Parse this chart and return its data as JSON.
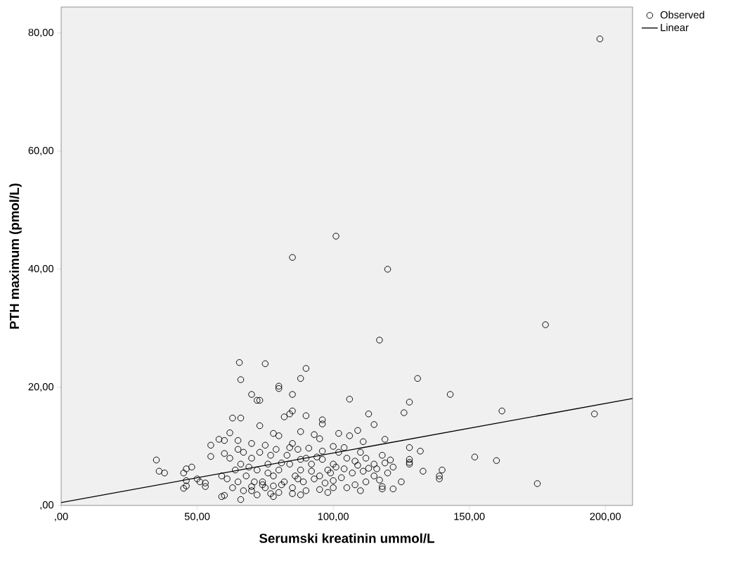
{
  "chart_data": {
    "type": "scatter",
    "xlabel": "Serumski kreatinin ummol/L",
    "ylabel": "PTH maximum (pmol/L)",
    "xlim": [
      0,
      210
    ],
    "ylim": [
      0,
      84.4
    ],
    "xticks": [
      {
        "value": 0,
        "label": ",00"
      },
      {
        "value": 50,
        "label": "50,00"
      },
      {
        "value": 100,
        "label": "100,00"
      },
      {
        "value": 150,
        "label": "150,00"
      },
      {
        "value": 200,
        "label": "200,00"
      }
    ],
    "yticks": [
      {
        "value": 0,
        "label": ",00"
      },
      {
        "value": 20,
        "label": "20,00"
      },
      {
        "value": 40,
        "label": "40,00"
      },
      {
        "value": 60,
        "label": "60,00"
      },
      {
        "value": 80,
        "label": "80,00"
      }
    ],
    "legend": "top right",
    "grid": false,
    "series": [
      {
        "name": "Observed",
        "color": "#000000",
        "marker": "circle",
        "x": [
          198,
          101,
          85,
          120,
          178,
          117,
          65.5,
          75,
          90,
          88,
          66,
          131,
          80,
          80,
          85,
          70,
          106,
          72,
          73,
          143,
          128,
          162,
          196,
          126,
          113,
          84,
          82,
          85,
          90,
          96,
          96,
          115,
          73,
          62,
          78,
          88,
          93,
          102,
          106,
          109,
          119,
          111,
          66,
          63,
          55,
          58,
          60,
          65,
          70,
          75,
          80,
          85,
          95,
          100,
          104,
          118,
          128,
          132,
          128,
          128,
          128,
          140,
          139,
          139,
          152,
          160,
          175,
          133,
          122,
          122,
          118,
          118,
          110,
          35,
          36,
          38,
          45,
          46,
          48,
          46,
          46,
          45,
          50,
          51,
          53,
          53,
          55,
          60,
          59,
          60,
          59,
          65,
          66,
          67,
          70,
          72,
          75,
          77,
          78,
          80,
          85,
          88,
          90,
          95,
          98,
          100,
          105,
          108,
          112,
          115,
          120,
          125,
          115,
          112,
          110,
          108,
          105,
          102,
          100,
          98,
          95,
          92,
          90,
          88,
          86,
          84,
          82,
          80,
          78,
          76,
          74,
          72,
          70,
          68,
          66,
          64,
          62,
          61,
          63,
          67,
          71,
          73,
          77,
          79,
          81,
          83,
          87,
          89,
          91,
          93,
          94,
          96,
          97,
          99,
          101,
          103,
          104,
          107,
          109,
          111,
          113,
          116,
          119,
          121,
          117,
          85,
          87,
          76,
          74,
          69,
          65,
          92,
          96,
          81,
          84,
          78,
          88,
          70,
          100
        ],
        "values": [
          79,
          45.6,
          42,
          40,
          30.6,
          28,
          24.2,
          24,
          23.2,
          21.5,
          21.3,
          21.5,
          20.2,
          19.8,
          18.8,
          18.8,
          18,
          17.8,
          17.8,
          18.8,
          17.5,
          16,
          15.5,
          15.7,
          15.5,
          15.5,
          15,
          16,
          15.2,
          14.5,
          13.8,
          13.7,
          13.5,
          12.3,
          12.2,
          12.5,
          12,
          12.2,
          11.8,
          12.7,
          11.2,
          10.8,
          14.8,
          14.8,
          10.2,
          11.2,
          11,
          11,
          10.5,
          10.2,
          11.8,
          10.5,
          11.3,
          10,
          9.8,
          8.5,
          9.8,
          9.2,
          7.8,
          7.3,
          7,
          6,
          5,
          4.5,
          8.2,
          7.6,
          3.7,
          5.8,
          6.5,
          2.8,
          3.2,
          2.8,
          2.5,
          7.7,
          5.8,
          5.5,
          5.5,
          6.2,
          6.5,
          4.2,
          3.3,
          2.9,
          4.5,
          4,
          3.8,
          3.2,
          8.3,
          8.8,
          5,
          1.7,
          1.5,
          4,
          1,
          2.5,
          2.5,
          1.8,
          3,
          2,
          1.5,
          2.2,
          2,
          1.8,
          2.5,
          2.7,
          2.2,
          3,
          3,
          3.5,
          4,
          5,
          5.5,
          4,
          7,
          8,
          9,
          7.5,
          8,
          9,
          7,
          6,
          5,
          7,
          8,
          6,
          5,
          7,
          4,
          6,
          5,
          7,
          4,
          6,
          8,
          5,
          7,
          6,
          8,
          4.5,
          3,
          9,
          4,
          9,
          8.5,
          9.5,
          3.5,
          8.5,
          9.5,
          4,
          9.7,
          4.5,
          8.2,
          7.8,
          3.8,
          5.5,
          6.5,
          4.7,
          6.2,
          5.5,
          6.8,
          5.8,
          6.3,
          6.2,
          7.2,
          7.7,
          4.3,
          3,
          4.5,
          5.5,
          3.5,
          6.5,
          9.5,
          5.8,
          9.2,
          7.2,
          9.8,
          3.3,
          7.8,
          3.2,
          4.2
        ]
      },
      {
        "name": "Linear",
        "type": "line",
        "color": "#000000",
        "line_style": "solid",
        "x": [
          0,
          210
        ],
        "values": [
          0.5,
          18.1
        ]
      }
    ]
  }
}
